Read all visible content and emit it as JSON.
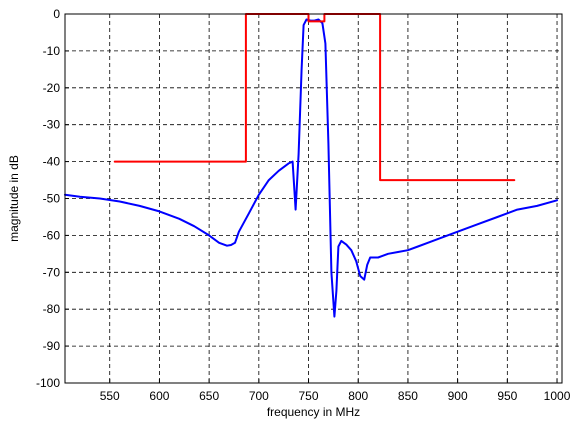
{
  "chart_data": {
    "type": "line",
    "title": "",
    "xlabel": "frequency in MHz",
    "ylabel": "magnitude in dB",
    "xlim": [
      505,
      1005
    ],
    "ylim": [
      -100,
      0
    ],
    "x_ticks": [
      550,
      600,
      650,
      700,
      750,
      800,
      850,
      900,
      950,
      1000
    ],
    "y_ticks": [
      0,
      -10,
      -20,
      -30,
      -40,
      -50,
      -60,
      -70,
      -80,
      -90,
      -100
    ],
    "grid": true,
    "grid_style": "dashed",
    "legend": "none",
    "series": [
      {
        "color": "#0000ff",
        "x": [
          505,
          520,
          540,
          560,
          580,
          600,
          620,
          635,
          650,
          660,
          668,
          672,
          676,
          680,
          690,
          700,
          710,
          720,
          730,
          734,
          737,
          740,
          743,
          745,
          748,
          752,
          756,
          760,
          764,
          767,
          770,
          773,
          776,
          778,
          780,
          783,
          788,
          793,
          798,
          802,
          806,
          809,
          812,
          820,
          830,
          840,
          850,
          860,
          870,
          880,
          900,
          920,
          940,
          960,
          980,
          1000
        ],
        "y": [
          -49,
          -49.5,
          -50,
          -50.8,
          -52,
          -53.5,
          -55.5,
          -57.5,
          -60,
          -62,
          -62.8,
          -62.6,
          -62,
          -59,
          -54,
          -49,
          -45,
          -42.5,
          -40.5,
          -40,
          -53,
          -38,
          -15,
          -3,
          -1.5,
          -1.8,
          -1.8,
          -1.5,
          -2.5,
          -8,
          -35,
          -70,
          -82,
          -75,
          -63,
          -61.5,
          -62.5,
          -64,
          -67,
          -71,
          -72,
          -68,
          -66,
          -66,
          -65,
          -64.5,
          -64,
          -63,
          -62,
          -61,
          -59,
          -57,
          -55,
          -53,
          -52,
          -50.5
        ]
      },
      {
        "color": "#ff0000",
        "x": [
          555,
          687,
          687,
          750,
          750,
          766,
          766,
          822,
          822,
          957
        ],
        "y": [
          -40,
          -40,
          0,
          0,
          -2,
          -2,
          0,
          0,
          -45,
          -45
        ]
      }
    ]
  }
}
